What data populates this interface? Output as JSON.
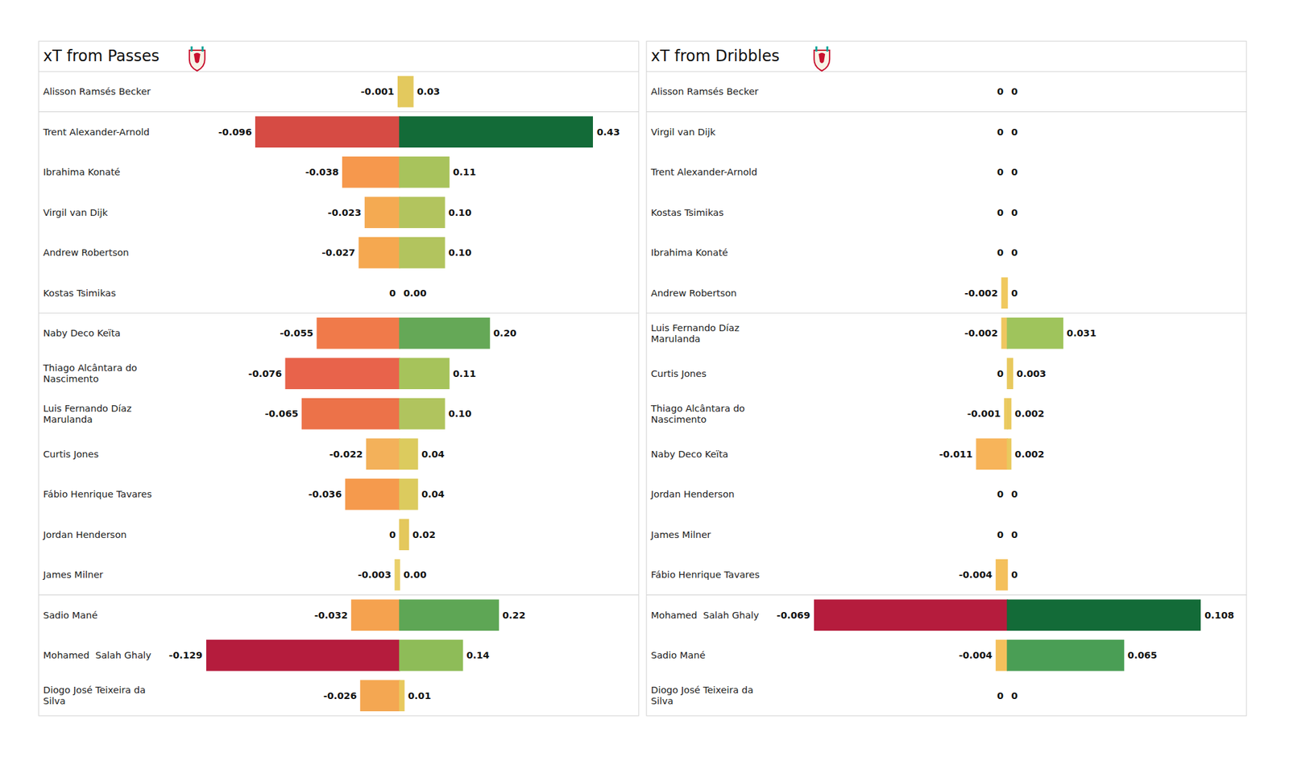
{
  "chart_data": [
    {
      "type": "bar",
      "orientation": "horizontal",
      "title": "xT from Passes",
      "categories": [
        "Alisson Ramsés Becker",
        "Trent Alexander-Arnold",
        "Ibrahima Konaté",
        "Virgil van Dijk",
        "Andrew Robertson",
        "Kostas Tsimikas",
        "Naby Deco Keïta",
        "Thiago Alcântara do Nascimento",
        "Luis Fernando Díaz Marulanda",
        "Curtis Jones",
        "Fábio Henrique Tavares",
        "Jordan Henderson",
        "James Milner",
        "Sadio Mané",
        "Mohamed  Salah Ghaly",
        "Diogo José Teixeira da Silva"
      ],
      "series": [
        {
          "values": [
            -0.001,
            -0.096,
            -0.038,
            -0.023,
            -0.027,
            0,
            -0.055,
            -0.076,
            -0.065,
            -0.022,
            -0.036,
            0,
            -0.003,
            -0.032,
            -0.129,
            -0.026
          ],
          "colors": [
            "#e5c85a",
            "#d64b44",
            "#f6984d",
            "#f4aa52",
            "#f5a850",
            "#e6c65a",
            "#f07a4a",
            "#e8634b",
            "#ec7249",
            "#f3b15a",
            "#f59a4d",
            "#e6c65a",
            "#ead06a",
            "#f5a24f",
            "#b51c3d",
            "#f4a752"
          ]
        },
        {
          "values": [
            0.03,
            0.43,
            0.11,
            0.1,
            0.1,
            0,
            0.2,
            0.11,
            0.1,
            0.04,
            0.04,
            0.02,
            0,
            0.22,
            0.14,
            0.01
          ],
          "value_labels": [
            "0.03",
            "0.43",
            "0.11",
            "0.10",
            "0.10",
            "0.00",
            "0.20",
            "0.11",
            "0.10",
            "0.04",
            "0.04",
            "0.02",
            "0.00",
            "0.22",
            "0.14",
            "0.01"
          ],
          "colors": [
            "#e3c95e",
            "#136b38",
            "#a8c35c",
            "#b2c45e",
            "#b2c45e",
            "#e6c65a",
            "#65a857",
            "#a6c35b",
            "#b0c45e",
            "#dccb5e",
            "#dccb5e",
            "#e4c85c",
            "#e6c65a",
            "#5ea655",
            "#8ebc58",
            "#e8c95e"
          ]
        }
      ],
      "xlim": [
        -0.129,
        0.43
      ],
      "data_labels": true,
      "tick_labels": false
    },
    {
      "type": "bar",
      "orientation": "horizontal",
      "title": "xT from Dribbles",
      "categories": [
        "Alisson Ramsés Becker",
        "Virgil van Dijk",
        "Trent Alexander-Arnold",
        "Kostas Tsimikas",
        "Ibrahima Konaté",
        "Andrew Robertson",
        "Luis Fernando Díaz Marulanda",
        "Curtis Jones",
        "Thiago Alcântara do Nascimento",
        "Naby Deco Keïta",
        "Jordan Henderson",
        "James Milner",
        "Fábio Henrique Tavares",
        "Mohamed  Salah Ghaly",
        "Sadio Mané",
        "Diogo José Teixeira da Silva"
      ],
      "series": [
        {
          "values": [
            0,
            0,
            0,
            0,
            0,
            -0.002,
            -0.002,
            0,
            -0.001,
            -0.011,
            0,
            0,
            -0.004,
            -0.069,
            -0.004,
            0
          ],
          "colors": [
            "#e6c65a",
            "#e6c65a",
            "#e6c65a",
            "#e6c65a",
            "#e6c65a",
            "#f0c95e",
            "#efc760",
            "#e6c65a",
            "#eccb62",
            "#f7b45a",
            "#e6c65a",
            "#e6c65a",
            "#f4c05c",
            "#b51c3d",
            "#f4c05c",
            "#e6c65a"
          ]
        },
        {
          "values": [
            0,
            0,
            0,
            0,
            0,
            0,
            0.031,
            0.003,
            0.002,
            0.002,
            0,
            0,
            0,
            0.108,
            0.065,
            0
          ],
          "colors": [
            "#e6c65a",
            "#e6c65a",
            "#e6c65a",
            "#e6c65a",
            "#e6c65a",
            "#e6c65a",
            "#9fc45c",
            "#e8c95e",
            "#e9c95e",
            "#e9c95e",
            "#e6c65a",
            "#e6c65a",
            "#e6c65a",
            "#136b38",
            "#4a9e55",
            "#e6c65a"
          ]
        }
      ],
      "xlim": [
        -0.069,
        0.108
      ],
      "data_labels": true,
      "tick_labels": false
    }
  ]
}
